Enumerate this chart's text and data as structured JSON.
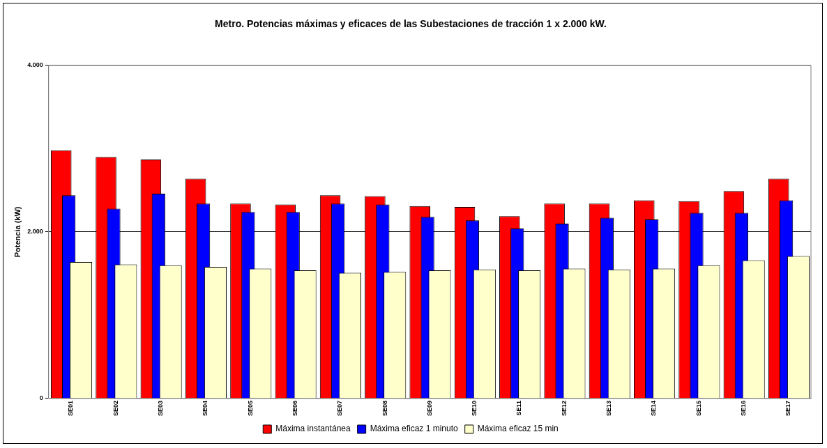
{
  "chart_data": {
    "type": "bar",
    "title": "Metro. Potencias máximas y eficaces de las Subestaciones de tracción 1 x 2.000 kW.",
    "ylabel": "Potencia (kW)",
    "categories": [
      "SE01",
      "SE02",
      "SE03",
      "SE04",
      "SE05",
      "SE06",
      "SE07",
      "SE08",
      "SE09",
      "SE10",
      "SE11",
      "SE12",
      "SE13",
      "SE14",
      "SE15",
      "SE16",
      "SE17"
    ],
    "series": [
      {
        "name": "Máxima instantánea",
        "color": "#ff0000",
        "values": [
          2980,
          2900,
          2870,
          2640,
          2340,
          2330,
          2440,
          2430,
          2310,
          2300,
          2190,
          2340,
          2340,
          2380,
          2370,
          2490,
          2640
        ]
      },
      {
        "name": "Máxima eficaz 1 minuto",
        "color": "#0000ff",
        "values": [
          2440,
          2280,
          2460,
          2340,
          2240,
          2240,
          2340,
          2330,
          2180,
          2140,
          2040,
          2100,
          2170,
          2150,
          2230,
          2230,
          2380
        ]
      },
      {
        "name": "Máxima eficaz 15 min",
        "color": "#ffffcc",
        "values": [
          1640,
          1610,
          1600,
          1580,
          1560,
          1540,
          1510,
          1520,
          1540,
          1550,
          1540,
          1560,
          1550,
          1560,
          1600,
          1660,
          1710
        ]
      }
    ],
    "ylim": [
      0,
      4000
    ],
    "yticks": [
      0,
      {
        "value": 2000,
        "label": "2.000"
      },
      {
        "value": 4000,
        "label": "4.000"
      }
    ],
    "grid": "y",
    "legend": "bottom"
  }
}
